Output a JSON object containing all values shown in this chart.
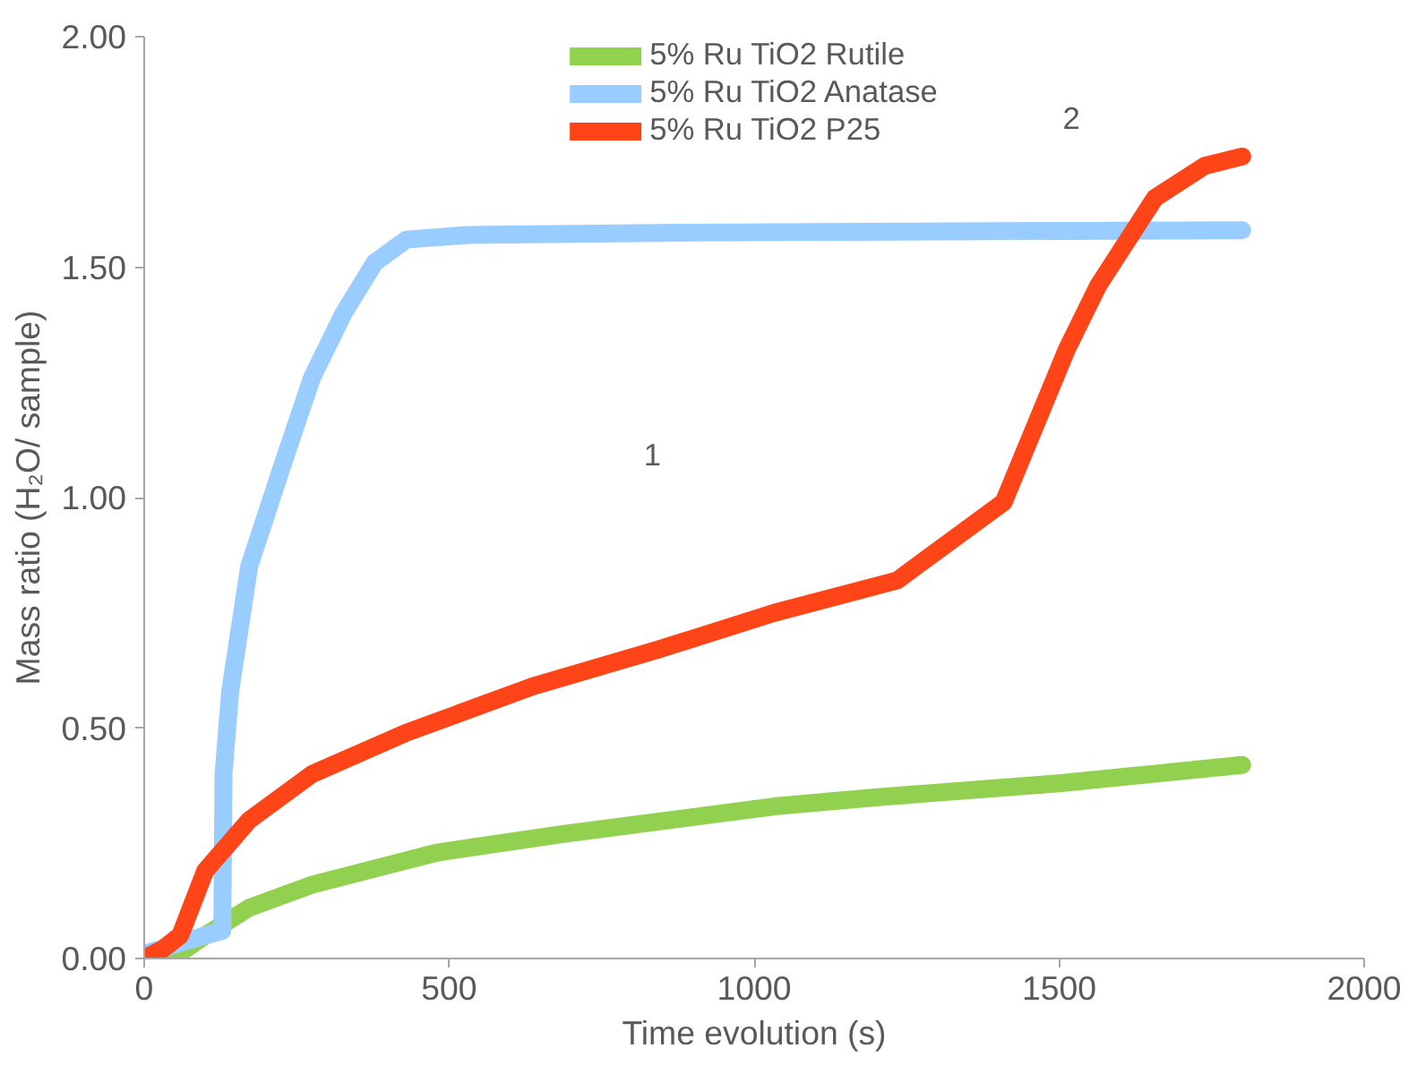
{
  "chart_data": {
    "type": "line",
    "xlabel": "Time evolution (s)",
    "ylabel": "Mass ratio (H₂O/ sample)",
    "xlim": [
      0,
      2000
    ],
    "xticks": [
      0,
      500,
      1000,
      1500,
      2000
    ],
    "ylim": [
      0,
      2
    ],
    "yticks": [
      {
        "value": 0,
        "label": "0.00"
      },
      {
        "value": 0.5,
        "label": "0.50"
      },
      {
        "value": 1,
        "label": "1.00"
      },
      {
        "value": 1.5,
        "label": "1.50"
      },
      {
        "value": 2,
        "label": "2.00"
      }
    ],
    "grid": false,
    "legend": "top",
    "line_style": "solid",
    "annotations": [
      "1",
      "2"
    ],
    "series": [
      {
        "name": "5% Ru TiO2 Rutile",
        "color": "#92d050",
        "x": [
          40,
          68,
          100,
          172,
          275,
          481,
          687,
          1033,
          1203,
          1500,
          1800
        ],
        "values": [
          0,
          0.02,
          0.05,
          0.11,
          0.16,
          0.23,
          0.27,
          0.33,
          0.35,
          0.38,
          0.42
        ]
      },
      {
        "name": "5% Ru TiO2 Anatase",
        "color": "#99ccff",
        "x": [
          0,
          50,
          100,
          128,
          130,
          141,
          172,
          224,
          275,
          327,
          378,
          430,
          533,
          900,
          1400,
          1800
        ],
        "values": [
          0.01,
          0.03,
          0.05,
          0.06,
          0.4,
          0.58,
          0.85,
          1.06,
          1.26,
          1.4,
          1.51,
          1.56,
          1.57,
          1.575,
          1.578,
          1.58
        ]
      },
      {
        "name": "5% Ru TiO2 P25",
        "color": "#ff4517",
        "x": [
          0,
          30,
          59,
          100,
          172,
          275,
          430,
          636,
          842,
          1033,
          1234,
          1409,
          1512,
          1564,
          1657,
          1739,
          1800
        ],
        "values": [
          0,
          0.02,
          0.05,
          0.19,
          0.3,
          0.4,
          0.49,
          0.59,
          0.67,
          0.75,
          0.82,
          0.99,
          1.32,
          1.46,
          1.65,
          1.72,
          1.74
        ]
      }
    ]
  }
}
